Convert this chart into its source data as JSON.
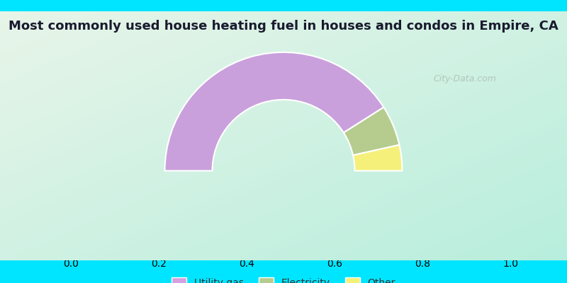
{
  "title": "Most commonly used house heating fuel in houses and condos in Empire, CA",
  "title_color": "#1a1a2e",
  "title_fontsize": 13,
  "categories": [
    "Utility gas",
    "Electricity",
    "Other"
  ],
  "values": [
    82,
    11,
    7
  ],
  "colors": [
    "#c9a0dc",
    "#b5cc8e",
    "#f5f07a"
  ],
  "legend_colors": [
    "#d4a0e0",
    "#b5cc8e",
    "#f5f07a"
  ],
  "bg_color_top_left": "#e8f5e9",
  "bg_color_bottom_right": "#b2ebf2",
  "watermark_text": "City-Data.com",
  "bottom_bar_color": "#00e5ff"
}
